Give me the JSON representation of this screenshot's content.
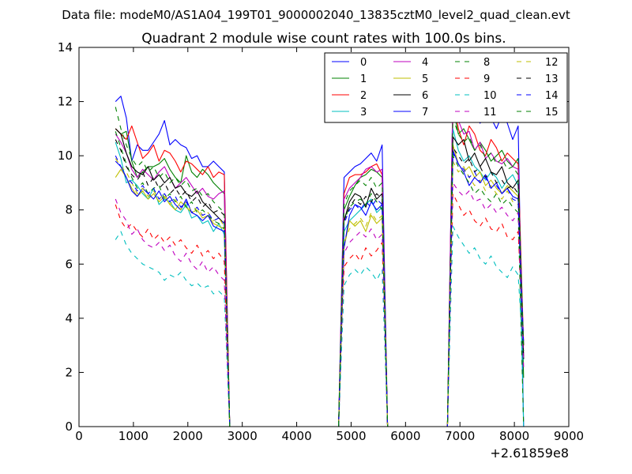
{
  "figure": {
    "suptitle": "Data file: modeM0/AS1A04_199T01_9000002040_13835cztM0_level2_quad_clean.evt"
  },
  "chart_data": {
    "type": "line",
    "title": "Quadrant 2 module wise count rates with 100.0s bins.",
    "xlabel": "",
    "ylabel": "",
    "x_offset_label": "+2.61859e8",
    "xlim": [
      0,
      9000
    ],
    "ylim": [
      0,
      14
    ],
    "x_ticks": [
      0,
      1000,
      2000,
      3000,
      4000,
      5000,
      6000,
      7000,
      8000,
      9000
    ],
    "y_ticks": [
      0,
      2,
      4,
      6,
      8,
      10,
      12,
      14
    ],
    "grid": false,
    "legend_position": "top-right",
    "legend_columns": 4,
    "x": [
      670,
      770,
      870,
      970,
      1070,
      1170,
      1270,
      1370,
      1470,
      1570,
      1670,
      1770,
      1870,
      1970,
      2070,
      2170,
      2270,
      2370,
      2470,
      2570,
      2670,
      2770,
      2870,
      2970,
      3070,
      3170,
      3270,
      3370,
      3470,
      3570,
      3670,
      3770,
      3870,
      3970,
      4070,
      4170,
      4270,
      4370,
      4470,
      4570,
      4670,
      4770,
      4870,
      4970,
      5070,
      5170,
      5270,
      5370,
      5470,
      5570,
      5670,
      5770,
      5870,
      5970,
      6070,
      6170,
      6270,
      6370,
      6470,
      6570,
      6670,
      6770,
      6870,
      6970,
      7070,
      7170,
      7270,
      7370,
      7470,
      7570,
      7670,
      7770,
      7870,
      7970,
      8070,
      8170
    ],
    "active_segments": [
      [
        0,
        20
      ],
      [
        42,
        49
      ],
      [
        62,
        74
      ]
    ],
    "zero_value": 0.0,
    "segment_end_values": [
      0.0,
      1.8,
      3.0,
      0.0,
      2.6,
      3.0,
      2.5,
      3.0,
      0.0,
      3.0,
      2.4,
      2.2,
      3.0,
      2.5,
      3.0,
      2.8
    ],
    "series": [
      {
        "name": "0",
        "color": "#0000ff",
        "dash": "solid",
        "segments": [
          [
            12.0,
            12.2,
            11.4,
            9.8,
            10.4,
            10.2,
            10.2,
            10.5,
            10.8,
            11.3,
            10.4,
            10.6,
            10.4,
            10.3,
            9.9,
            10.0,
            9.6,
            9.6,
            9.8,
            9.6,
            9.4
          ],
          [
            9.2,
            9.4,
            9.6,
            9.7,
            9.9,
            10.1,
            9.8,
            10.4
          ],
          [
            12.4,
            11.3,
            11.6,
            11.8,
            11.5,
            11.2,
            11.5,
            11.4,
            11.0,
            11.5,
            11.2,
            10.6,
            11.1,
            11.2
          ]
        ]
      },
      {
        "name": "1",
        "color": "#008000",
        "dash": "solid",
        "segments": [
          [
            11.0,
            10.8,
            10.9,
            9.8,
            9.2,
            9.4,
            9.6,
            9.6,
            9.7,
            9.9,
            9.5,
            9.2,
            9.0,
            10.0,
            9.4,
            9.2,
            9.5,
            9.3,
            9.0,
            8.8,
            8.6
          ],
          [
            8.0,
            8.5,
            8.9,
            9.2,
            9.3,
            9.5,
            9.4,
            9.2
          ],
          [
            11.8,
            10.8,
            11.0,
            10.6,
            10.2,
            10.5,
            10.2,
            9.8,
            10.0,
            10.2,
            9.8,
            9.6,
            9.9,
            9.7
          ]
        ]
      },
      {
        "name": "2",
        "color": "#ff0000",
        "dash": "solid",
        "segments": [
          [
            11.0,
            10.8,
            10.6,
            11.1,
            10.5,
            9.9,
            10.1,
            10.4,
            9.8,
            10.2,
            10.1,
            9.8,
            9.4,
            9.8,
            9.7,
            9.5,
            9.3,
            9.6,
            9.2,
            9.4,
            9.3
          ],
          [
            8.6,
            9.2,
            9.3,
            9.3,
            9.4,
            9.6,
            9.7,
            9.3
          ],
          [
            12.2,
            11.0,
            10.4,
            11.1,
            10.8,
            10.2,
            10.0,
            10.6,
            10.3,
            9.8,
            10.1,
            9.9,
            9.7,
            9.4
          ]
        ]
      },
      {
        "name": "3",
        "color": "#00bfbf",
        "dash": "solid",
        "segments": [
          [
            10.5,
            9.9,
            9.0,
            9.1,
            8.9,
            8.6,
            8.4,
            8.8,
            8.2,
            8.4,
            8.3,
            8.0,
            7.9,
            8.2,
            7.7,
            7.8,
            7.5,
            7.6,
            7.2,
            7.5,
            7.1
          ],
          [
            7.2,
            7.6,
            7.8,
            8.0,
            8.2,
            8.4,
            7.9,
            8.1
          ],
          [
            11.0,
            10.2,
            9.8,
            10.0,
            9.6,
            9.4,
            9.1,
            9.4,
            9.2,
            8.8,
            9.1,
            9.3,
            8.9,
            8.6
          ]
        ]
      },
      {
        "name": "4",
        "color": "#bf00bf",
        "dash": "solid",
        "segments": [
          [
            10.8,
            10.5,
            10.1,
            9.5,
            9.2,
            9.5,
            9.3,
            9.1,
            9.4,
            9.6,
            9.2,
            8.8,
            9.0,
            9.2,
            8.9,
            8.6,
            8.8,
            8.5,
            8.4,
            8.6,
            8.7
          ],
          [
            8.4,
            8.8,
            9.0,
            9.2,
            9.5,
            9.6,
            9.4,
            9.5
          ],
          [
            12.3,
            11.3,
            10.8,
            10.9,
            10.2,
            10.5,
            9.9,
            10.1,
            9.8,
            9.7,
            9.9,
            9.6,
            9.5,
            9.5
          ]
        ]
      },
      {
        "name": "5",
        "color": "#bfbf00",
        "dash": "solid",
        "segments": [
          [
            9.2,
            9.5,
            9.2,
            8.8,
            8.5,
            8.7,
            8.4,
            8.6,
            8.3,
            8.5,
            8.2,
            8.0,
            8.3,
            8.1,
            7.9,
            8.0,
            7.7,
            7.8,
            7.5,
            7.4,
            7.3
          ],
          [
            6.6,
            7.6,
            7.4,
            7.6,
            7.2,
            7.8,
            7.5,
            7.7
          ],
          [
            10.4,
            9.7,
            9.4,
            9.6,
            9.2,
            9.4,
            8.9,
            9.1,
            8.8,
            8.6,
            8.9,
            8.7,
            8.5,
            8.3
          ]
        ]
      },
      {
        "name": "6",
        "color": "#000000",
        "dash": "solid",
        "segments": [
          [
            11.0,
            10.8,
            10.1,
            9.6,
            9.4,
            9.3,
            9.6,
            9.1,
            9.3,
            9.0,
            9.2,
            8.8,
            8.9,
            8.6,
            8.5,
            8.7,
            8.3,
            8.1,
            7.9,
            7.7,
            7.5
          ],
          [
            7.6,
            8.3,
            8.6,
            8.5,
            8.1,
            8.8,
            8.4,
            8.6
          ],
          [
            10.7,
            10.4,
            10.6,
            9.8,
            10.1,
            9.6,
            9.9,
            9.4,
            9.3,
            9.6,
            9.0,
            8.8,
            9.1,
            8.6
          ]
        ]
      },
      {
        "name": "7",
        "color": "#0000ff",
        "dash": "solid",
        "segments": [
          [
            9.8,
            9.6,
            9.2,
            8.7,
            8.5,
            8.8,
            8.6,
            8.4,
            8.7,
            8.3,
            8.5,
            8.2,
            8.0,
            8.4,
            7.9,
            7.8,
            7.6,
            7.8,
            7.4,
            7.3,
            7.2
          ],
          [
            6.6,
            7.8,
            8.2,
            8.1,
            7.8,
            8.3,
            8.0,
            8.2
          ],
          [
            10.2,
            9.7,
            9.4,
            8.9,
            9.2,
            9.0,
            9.3,
            8.8,
            9.0,
            8.6,
            8.8,
            8.5,
            8.4,
            8.0
          ]
        ]
      },
      {
        "name": "8",
        "color": "#008000",
        "dash": "dashed",
        "segments": [
          [
            10.9,
            10.3,
            9.7,
            9.2,
            8.8,
            9.0,
            8.6,
            8.8,
            8.9,
            8.4,
            8.6,
            8.3,
            8.5,
            8.1,
            8.3,
            7.9,
            8.0,
            7.8,
            7.6,
            7.5,
            7.3
          ],
          [
            7.6,
            8.1,
            8.3,
            8.4,
            8.2,
            8.6,
            8.3,
            8.0
          ],
          [
            10.0,
            9.6,
            9.3,
            9.0,
            8.6,
            8.8,
            8.5,
            8.3,
            8.6,
            8.2,
            8.4,
            8.1,
            7.9,
            7.8
          ]
        ]
      },
      {
        "name": "9",
        "color": "#ff0000",
        "dash": "dashed",
        "segments": [
          [
            8.2,
            7.6,
            7.3,
            7.5,
            7.2,
            7.0,
            7.3,
            6.9,
            7.1,
            6.8,
            7.0,
            6.7,
            6.9,
            6.6,
            6.4,
            6.7,
            6.3,
            6.5,
            6.2,
            6.4,
            6.1
          ],
          [
            5.9,
            6.2,
            6.4,
            6.1,
            6.6,
            6.3,
            6.5,
            6.8
          ],
          [
            8.6,
            8.2,
            7.8,
            8.0,
            7.6,
            7.4,
            7.7,
            7.3,
            7.2,
            7.5,
            7.0,
            6.9,
            7.2,
            6.8
          ]
        ]
      },
      {
        "name": "10",
        "color": "#00bfbf",
        "dash": "dashed",
        "segments": [
          [
            6.9,
            7.2,
            6.7,
            6.4,
            6.2,
            6.0,
            5.9,
            5.8,
            5.7,
            5.4,
            5.6,
            5.5,
            5.7,
            5.4,
            5.2,
            5.3,
            5.1,
            5.2,
            4.9,
            5.0,
            4.8
          ],
          [
            5.2,
            5.6,
            5.8,
            5.6,
            5.9,
            5.7,
            5.4,
            5.8
          ],
          [
            7.4,
            7.0,
            6.7,
            6.4,
            6.6,
            6.2,
            6.0,
            6.3,
            5.9,
            5.7,
            5.5,
            5.9,
            5.6,
            5.4
          ]
        ]
      },
      {
        "name": "11",
        "color": "#bf00bf",
        "dash": "dashed",
        "segments": [
          [
            8.4,
            7.9,
            7.6,
            7.1,
            7.3,
            6.9,
            6.7,
            6.6,
            6.8,
            6.5,
            6.7,
            6.3,
            6.1,
            6.4,
            6.0,
            5.8,
            6.1,
            5.7,
            5.9,
            5.6,
            5.4
          ],
          [
            6.4,
            6.8,
            7.0,
            7.2,
            7.0,
            7.3,
            6.9,
            7.1
          ],
          [
            9.0,
            8.7,
            8.5,
            8.7,
            8.3,
            8.4,
            8.0,
            8.2,
            7.9,
            8.1,
            7.8,
            7.6,
            7.9,
            7.5
          ]
        ]
      },
      {
        "name": "12",
        "color": "#bfbf00",
        "dash": "dashed",
        "segments": [
          [
            9.9,
            9.6,
            9.4,
            9.0,
            8.6,
            8.8,
            8.5,
            8.7,
            8.4,
            8.6,
            8.2,
            8.4,
            8.0,
            8.3,
            7.9,
            8.1,
            7.8,
            7.9,
            7.6,
            7.7,
            7.4
          ],
          [
            6.8,
            7.3,
            7.5,
            7.7,
            7.4,
            7.9,
            7.6,
            7.8
          ],
          [
            9.8,
            9.4,
            9.6,
            9.2,
            8.9,
            9.1,
            8.7,
            8.9,
            8.6,
            8.4,
            8.7,
            8.3,
            8.2,
            8.0
          ]
        ]
      },
      {
        "name": "13",
        "color": "#000000",
        "dash": "dashed",
        "segments": [
          [
            10.6,
            10.2,
            9.6,
            9.3,
            9.1,
            9.4,
            8.9,
            9.2,
            8.8,
            9.0,
            8.6,
            8.8,
            8.5,
            8.7,
            8.3,
            8.5,
            8.1,
            8.3,
            7.9,
            8.0,
            7.8
          ],
          [
            7.6,
            8.1,
            8.4,
            8.2,
            8.5,
            8.3,
            8.6,
            8.4
          ],
          [
            10.3,
            10.0,
            9.7,
            9.9,
            9.4,
            9.6,
            9.2,
            9.4,
            9.0,
            9.1,
            8.8,
            8.9,
            8.6,
            8.5
          ]
        ]
      },
      {
        "name": "14",
        "color": "#0000ff",
        "dash": "dashed",
        "segments": [
          [
            10.0,
            9.6,
            9.2,
            9.0,
            8.7,
            8.9,
            8.6,
            8.8,
            8.4,
            8.6,
            8.3,
            8.5,
            8.1,
            8.3,
            7.9,
            8.1,
            7.8,
            7.9,
            7.6,
            7.7,
            7.5
          ],
          [
            7.5,
            8.0,
            8.2,
            8.0,
            8.3,
            8.1,
            8.4,
            8.2
          ],
          [
            10.1,
            9.7,
            9.5,
            9.2,
            9.4,
            9.0,
            9.2,
            8.8,
            8.9,
            8.6,
            8.8,
            8.4,
            8.3,
            8.1
          ]
        ]
      },
      {
        "name": "15",
        "color": "#008000",
        "dash": "dashed",
        "segments": [
          [
            11.8,
            11.0,
            10.4,
            9.9,
            9.6,
            9.8,
            9.4,
            9.6,
            9.2,
            9.4,
            9.0,
            9.2,
            8.9,
            9.1,
            8.7,
            8.8,
            8.5,
            8.6,
            8.3,
            8.1,
            7.9
          ],
          [
            8.2,
            8.7,
            8.9,
            9.1,
            8.9,
            9.2,
            8.8,
            9.0
          ],
          [
            11.4,
            10.8,
            10.5,
            10.7,
            10.2,
            10.4,
            9.9,
            10.1,
            9.7,
            9.9,
            9.5,
            9.6,
            9.3,
            9.2
          ]
        ]
      }
    ]
  }
}
